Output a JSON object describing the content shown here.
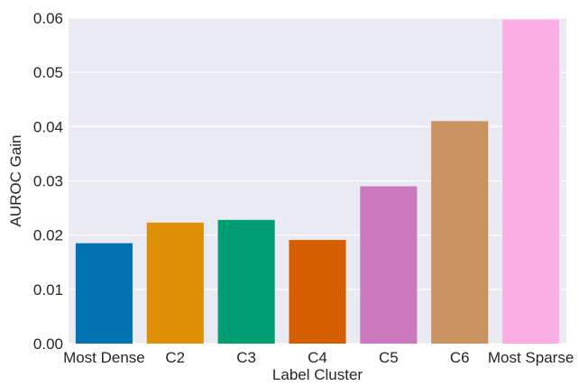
{
  "chart_data": {
    "type": "bar",
    "title": "",
    "xlabel": "Label Cluster",
    "ylabel": "AUROC Gain",
    "categories": [
      "Most Dense",
      "C2",
      "C3",
      "C4",
      "C5",
      "C6",
      "Most Sparse"
    ],
    "values": [
      0.0185,
      0.0223,
      0.0228,
      0.0191,
      0.029,
      0.041,
      0.0597
    ],
    "ylim": [
      0,
      0.06
    ],
    "yticks": [
      0.0,
      0.01,
      0.02,
      0.03,
      0.04,
      0.05,
      0.06
    ],
    "ytick_labels": [
      "0.00",
      "0.01",
      "0.02",
      "0.03",
      "0.04",
      "0.05",
      "0.06"
    ],
    "grid": true,
    "background": "#eaeaf2",
    "grid_color": "#ffffff",
    "colors": [
      "#0173b2",
      "#de8f05",
      "#029e73",
      "#d55e00",
      "#cc78bc",
      "#ca9161",
      "#fbafe4"
    ]
  }
}
